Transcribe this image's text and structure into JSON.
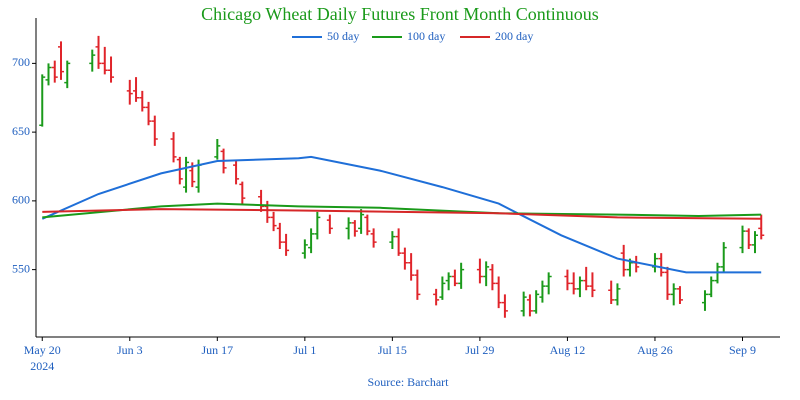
{
  "chart_data": {
    "type": "ohlc",
    "title": "Chicago Wheat Daily Futures Front Month Continuous",
    "source": "Source: Barchart",
    "up_color": "#1a9a1a",
    "down_color": "#e0242a",
    "xlim": [
      "2024-05-19",
      "2024-09-15"
    ],
    "xticks": [
      {
        "value": "2024-05-20",
        "label": "May 20"
      },
      {
        "value": "2024-06-03",
        "label": "Jun 3"
      },
      {
        "value": "2024-06-17",
        "label": "Jun 17"
      },
      {
        "value": "2024-07-01",
        "label": "Jul 1"
      },
      {
        "value": "2024-07-15",
        "label": "Jul 15"
      },
      {
        "value": "2024-07-29",
        "label": "Jul 29"
      },
      {
        "value": "2024-08-12",
        "label": "Aug 12"
      },
      {
        "value": "2024-08-26",
        "label": "Aug 26"
      },
      {
        "value": "2024-09-09",
        "label": "Sep 9"
      }
    ],
    "x_year_label": "2024",
    "ylim": [
      501,
      733
    ],
    "yticks": [
      550,
      600,
      650,
      700
    ],
    "ohlc": {
      "x": [
        "2024-05-20",
        "2024-05-21",
        "2024-05-22",
        "2024-05-23",
        "2024-05-24",
        "2024-05-28",
        "2024-05-29",
        "2024-05-30",
        "2024-05-31",
        "2024-06-03",
        "2024-06-04",
        "2024-06-05",
        "2024-06-06",
        "2024-06-07",
        "2024-06-10",
        "2024-06-11",
        "2024-06-12",
        "2024-06-13",
        "2024-06-14",
        "2024-06-17",
        "2024-06-18",
        "2024-06-20",
        "2024-06-21",
        "2024-06-24",
        "2024-06-25",
        "2024-06-26",
        "2024-06-27",
        "2024-06-28",
        "2024-07-01",
        "2024-07-02",
        "2024-07-03",
        "2024-07-05",
        "2024-07-08",
        "2024-07-09",
        "2024-07-10",
        "2024-07-11",
        "2024-07-12",
        "2024-07-15",
        "2024-07-16",
        "2024-07-17",
        "2024-07-18",
        "2024-07-19",
        "2024-07-22",
        "2024-07-23",
        "2024-07-24",
        "2024-07-25",
        "2024-07-26",
        "2024-07-29",
        "2024-07-30",
        "2024-07-31",
        "2024-08-01",
        "2024-08-02",
        "2024-08-05",
        "2024-08-06",
        "2024-08-07",
        "2024-08-08",
        "2024-08-09",
        "2024-08-12",
        "2024-08-13",
        "2024-08-14",
        "2024-08-15",
        "2024-08-16",
        "2024-08-19",
        "2024-08-20",
        "2024-08-21",
        "2024-08-22",
        "2024-08-23",
        "2024-08-26",
        "2024-08-27",
        "2024-08-28",
        "2024-08-29",
        "2024-08-30",
        "2024-09-03",
        "2024-09-04",
        "2024-09-05",
        "2024-09-06",
        "2024-09-09",
        "2024-09-10",
        "2024-09-11",
        "2024-09-12"
      ],
      "open": [
        655,
        688,
        697,
        712,
        686,
        700,
        712,
        700,
        695,
        680,
        680,
        675,
        668,
        658,
        645,
        630,
        610,
        622,
        610,
        632,
        636,
        626,
        612,
        603,
        596,
        588,
        580,
        570,
        562,
        566,
        576,
        586,
        580,
        584,
        580,
        588,
        576,
        570,
        574,
        562,
        555,
        546,
        532,
        530,
        542,
        545,
        540,
        550,
        545,
        550,
        540,
        526,
        520,
        528,
        520,
        530,
        538,
        545,
        540,
        536,
        542,
        538,
        535,
        528,
        562,
        550,
        555,
        552,
        558,
        548,
        532,
        536,
        526,
        532,
        542,
        552,
        566,
        578,
        568,
        580
      ],
      "high": [
        692,
        700,
        702,
        716,
        702,
        710,
        720,
        712,
        705,
        688,
        690,
        680,
        672,
        662,
        650,
        632,
        632,
        628,
        630,
        645,
        638,
        630,
        614,
        608,
        600,
        592,
        584,
        576,
        572,
        580,
        592,
        590,
        588,
        586,
        594,
        590,
        580,
        578,
        580,
        566,
        562,
        550,
        536,
        545,
        548,
        550,
        555,
        558,
        556,
        554,
        545,
        532,
        534,
        532,
        535,
        542,
        548,
        550,
        548,
        545,
        552,
        548,
        542,
        540,
        568,
        558,
        560,
        562,
        562,
        552,
        540,
        538,
        535,
        545,
        555,
        570,
        582,
        580,
        578,
        590
      ],
      "low": [
        654,
        684,
        686,
        688,
        682,
        694,
        696,
        692,
        686,
        670,
        672,
        665,
        655,
        640,
        628,
        612,
        606,
        610,
        606,
        630,
        620,
        612,
        598,
        592,
        584,
        578,
        565,
        560,
        558,
        562,
        572,
        576,
        572,
        574,
        576,
        575,
        566,
        565,
        560,
        550,
        542,
        528,
        524,
        528,
        535,
        538,
        536,
        540,
        538,
        535,
        522,
        515,
        516,
        516,
        518,
        526,
        532,
        535,
        532,
        530,
        535,
        530,
        525,
        524,
        545,
        545,
        548,
        548,
        545,
        528,
        524,
        525,
        520,
        530,
        540,
        548,
        562,
        565,
        562,
        572
      ],
      "close": [
        690,
        697,
        690,
        694,
        700,
        706,
        700,
        695,
        690,
        678,
        675,
        668,
        658,
        645,
        632,
        616,
        628,
        614,
        626,
        640,
        624,
        616,
        602,
        596,
        588,
        582,
        570,
        564,
        568,
        576,
        588,
        580,
        584,
        578,
        590,
        578,
        570,
        574,
        562,
        555,
        546,
        532,
        528,
        540,
        545,
        540,
        550,
        545,
        552,
        540,
        526,
        520,
        530,
        520,
        532,
        538,
        545,
        540,
        536,
        542,
        538,
        535,
        528,
        536,
        550,
        555,
        552,
        558,
        548,
        532,
        536,
        528,
        532,
        542,
        552,
        566,
        578,
        568,
        575,
        575
      ]
    },
    "moving_averages": [
      {
        "name": "50 day",
        "color": "#1f6fd8",
        "x": [
          "2024-05-20",
          "2024-05-29",
          "2024-06-08",
          "2024-06-17",
          "2024-06-30",
          "2024-07-02",
          "2024-07-13",
          "2024-07-23",
          "2024-08-01",
          "2024-08-11",
          "2024-08-20",
          "2024-08-31",
          "2024-09-12"
        ],
        "values": [
          587,
          605,
          620,
          629,
          631,
          632,
          622,
          610,
          598,
          575,
          558,
          548,
          548
        ]
      },
      {
        "name": "100 day",
        "color": "#1a9a1a",
        "x": [
          "2024-05-20",
          "2024-06-08",
          "2024-06-17",
          "2024-06-30",
          "2024-07-13",
          "2024-08-01",
          "2024-08-20",
          "2024-09-02",
          "2024-09-12"
        ],
        "values": [
          588,
          596,
          598,
          596,
          595,
          591,
          590,
          589,
          590
        ]
      },
      {
        "name": "200 day",
        "color": "#d62728",
        "x": [
          "2024-05-20",
          "2024-06-08",
          "2024-06-30",
          "2024-08-01",
          "2024-08-20",
          "2024-09-12"
        ],
        "values": [
          592,
          594,
          593,
          591,
          588,
          587
        ]
      }
    ]
  }
}
